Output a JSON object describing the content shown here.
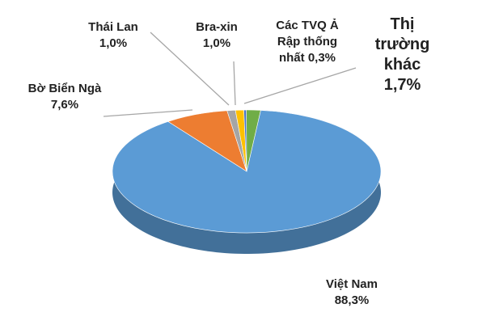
{
  "chart_data": {
    "type": "pie",
    "categories": [
      "Việt Nam",
      "Bờ Biển Ngà",
      "Thái Lan",
      "Bra-xin",
      "Các TVQ Ả Rập thống nhất",
      "Thị trường khác"
    ],
    "values": [
      88.3,
      7.6,
      1.0,
      1.0,
      0.3,
      1.7
    ],
    "value_labels": [
      "88,3%",
      "7,6%",
      "1,0%",
      "1,0%",
      "0,3%",
      "1,7%"
    ],
    "colors": [
      "#5b9bd5",
      "#ed7d31",
      "#a5a5a5",
      "#ffc000",
      "#4472c4",
      "#70ad47"
    ]
  }
}
